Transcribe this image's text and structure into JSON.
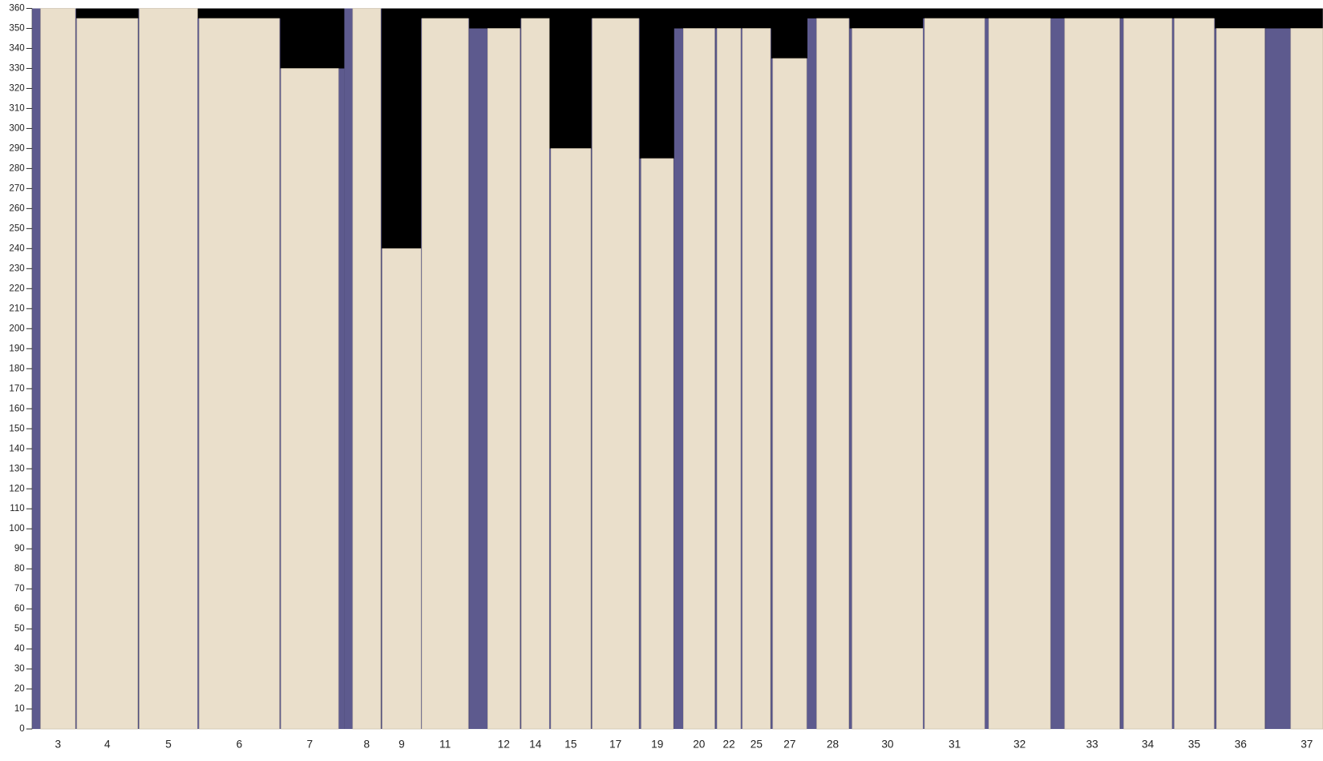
{
  "chart_data": {
    "type": "bar",
    "categories": [
      "3",
      "4",
      "5",
      "6",
      "7",
      "8",
      "9",
      "11",
      "12",
      "14",
      "15",
      "17",
      "19",
      "20",
      "22",
      "25",
      "27",
      "28",
      "30",
      "31",
      "32",
      "33",
      "34",
      "35",
      "36",
      "37"
    ],
    "values": [
      360,
      355,
      360,
      355,
      330,
      360,
      240,
      355,
      350,
      355,
      290,
      355,
      285,
      350,
      350,
      350,
      335,
      355,
      350,
      355,
      355,
      355,
      355,
      355,
      350,
      350
    ],
    "color": "#eadfcb",
    "ylim": [
      0,
      360
    ],
    "yticks": [
      0,
      10,
      20,
      30,
      40,
      50,
      60,
      70,
      80,
      90,
      100,
      110,
      120,
      130,
      140,
      150,
      160,
      170,
      180,
      190,
      200,
      210,
      220,
      230,
      240,
      250,
      260,
      270,
      280,
      290,
      300,
      310,
      320,
      330,
      340,
      350,
      360
    ]
  }
}
